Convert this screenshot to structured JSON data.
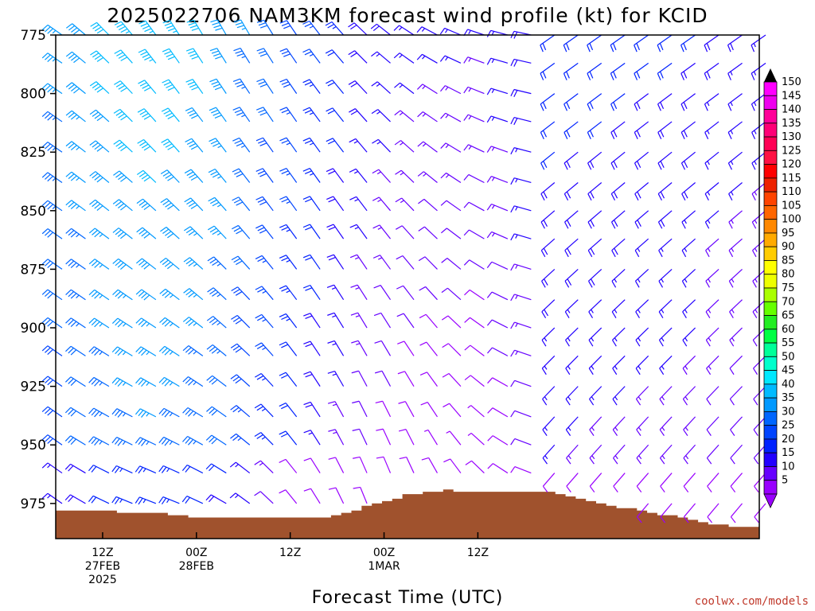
{
  "chart_data": {
    "type": "wind-profile",
    "title": "2025022706 NAM3KM forecast wind profile (kt) for KCID",
    "xlabel": "Forecast Time (UTC)",
    "ylabel": "",
    "y_axis": {
      "ticks": [
        "775",
        "800",
        "825",
        "850",
        "875",
        "900",
        "925",
        "950",
        "975"
      ],
      "range": [
        775,
        990
      ],
      "inverted": true
    },
    "x_axis": {
      "ticks": [
        {
          "line1": "12Z",
          "line2": "27FEB",
          "line3": "2025"
        },
        {
          "line1": "00Z",
          "line2": "28FEB",
          "line3": ""
        },
        {
          "line1": "12Z",
          "line2": "",
          "line3": ""
        },
        {
          "line1": "00Z",
          "line2": "1MAR",
          "line3": ""
        },
        {
          "line1": "12Z",
          "line2": "",
          "line3": ""
        }
      ]
    },
    "colorbar": {
      "levels": [
        150,
        145,
        140,
        135,
        130,
        125,
        120,
        115,
        110,
        105,
        100,
        95,
        90,
        85,
        80,
        75,
        70,
        65,
        60,
        55,
        50,
        45,
        40,
        35,
        30,
        25,
        20,
        15,
        10,
        5
      ],
      "colors": [
        "#ff00ff",
        "#ee00ee",
        "#ff0099",
        "#ff0077",
        "#ff0055",
        "#ff1144",
        "#ff0000",
        "#ee2200",
        "#ff4400",
        "#ff6600",
        "#ff8800",
        "#ffaa00",
        "#ffcc00",
        "#ffff00",
        "#eeff00",
        "#aaff00",
        "#66ff00",
        "#22ee22",
        "#00ff44",
        "#00ff99",
        "#00ffcc",
        "#00e8ff",
        "#00bbff",
        "#0099ff",
        "#0066ff",
        "#0044ff",
        "#0022ff",
        "#2200ff",
        "#6600ff",
        "#9900ff"
      ]
    },
    "terrain_pressure": [
      978,
      978,
      978,
      978,
      978,
      978,
      979,
      979,
      979,
      979,
      979,
      980,
      980,
      981,
      981,
      981,
      981,
      981,
      981,
      981,
      981,
      981,
      981,
      981,
      981,
      981,
      981,
      980,
      979,
      978,
      976,
      975,
      974,
      973,
      971,
      971,
      970,
      970,
      969,
      970,
      970,
      970,
      970,
      970,
      970,
      970,
      970,
      970,
      970,
      971,
      972,
      973,
      974,
      975,
      976,
      977,
      977,
      978,
      979,
      980,
      980,
      981,
      982,
      983,
      984,
      984,
      985,
      985,
      985
    ],
    "terrain_color": "#a0522d",
    "barb_pressures": [
      775,
      787,
      800,
      812,
      825,
      838,
      850,
      862,
      875,
      888,
      900,
      912,
      925,
      938,
      950,
      962,
      975
    ],
    "barb_times": [
      0,
      3,
      6,
      9,
      12,
      15,
      18,
      21,
      24,
      27,
      30,
      33,
      36,
      39,
      42,
      45,
      48,
      51,
      54,
      57,
      60,
      63,
      66,
      69,
      72,
      75,
      78,
      81,
      84,
      87,
      90
    ],
    "x_range_hours": [
      0,
      90
    ],
    "x_tick_hours": [
      6,
      18,
      30,
      42,
      54
    ]
  },
  "credit": "coolwx.com/models"
}
